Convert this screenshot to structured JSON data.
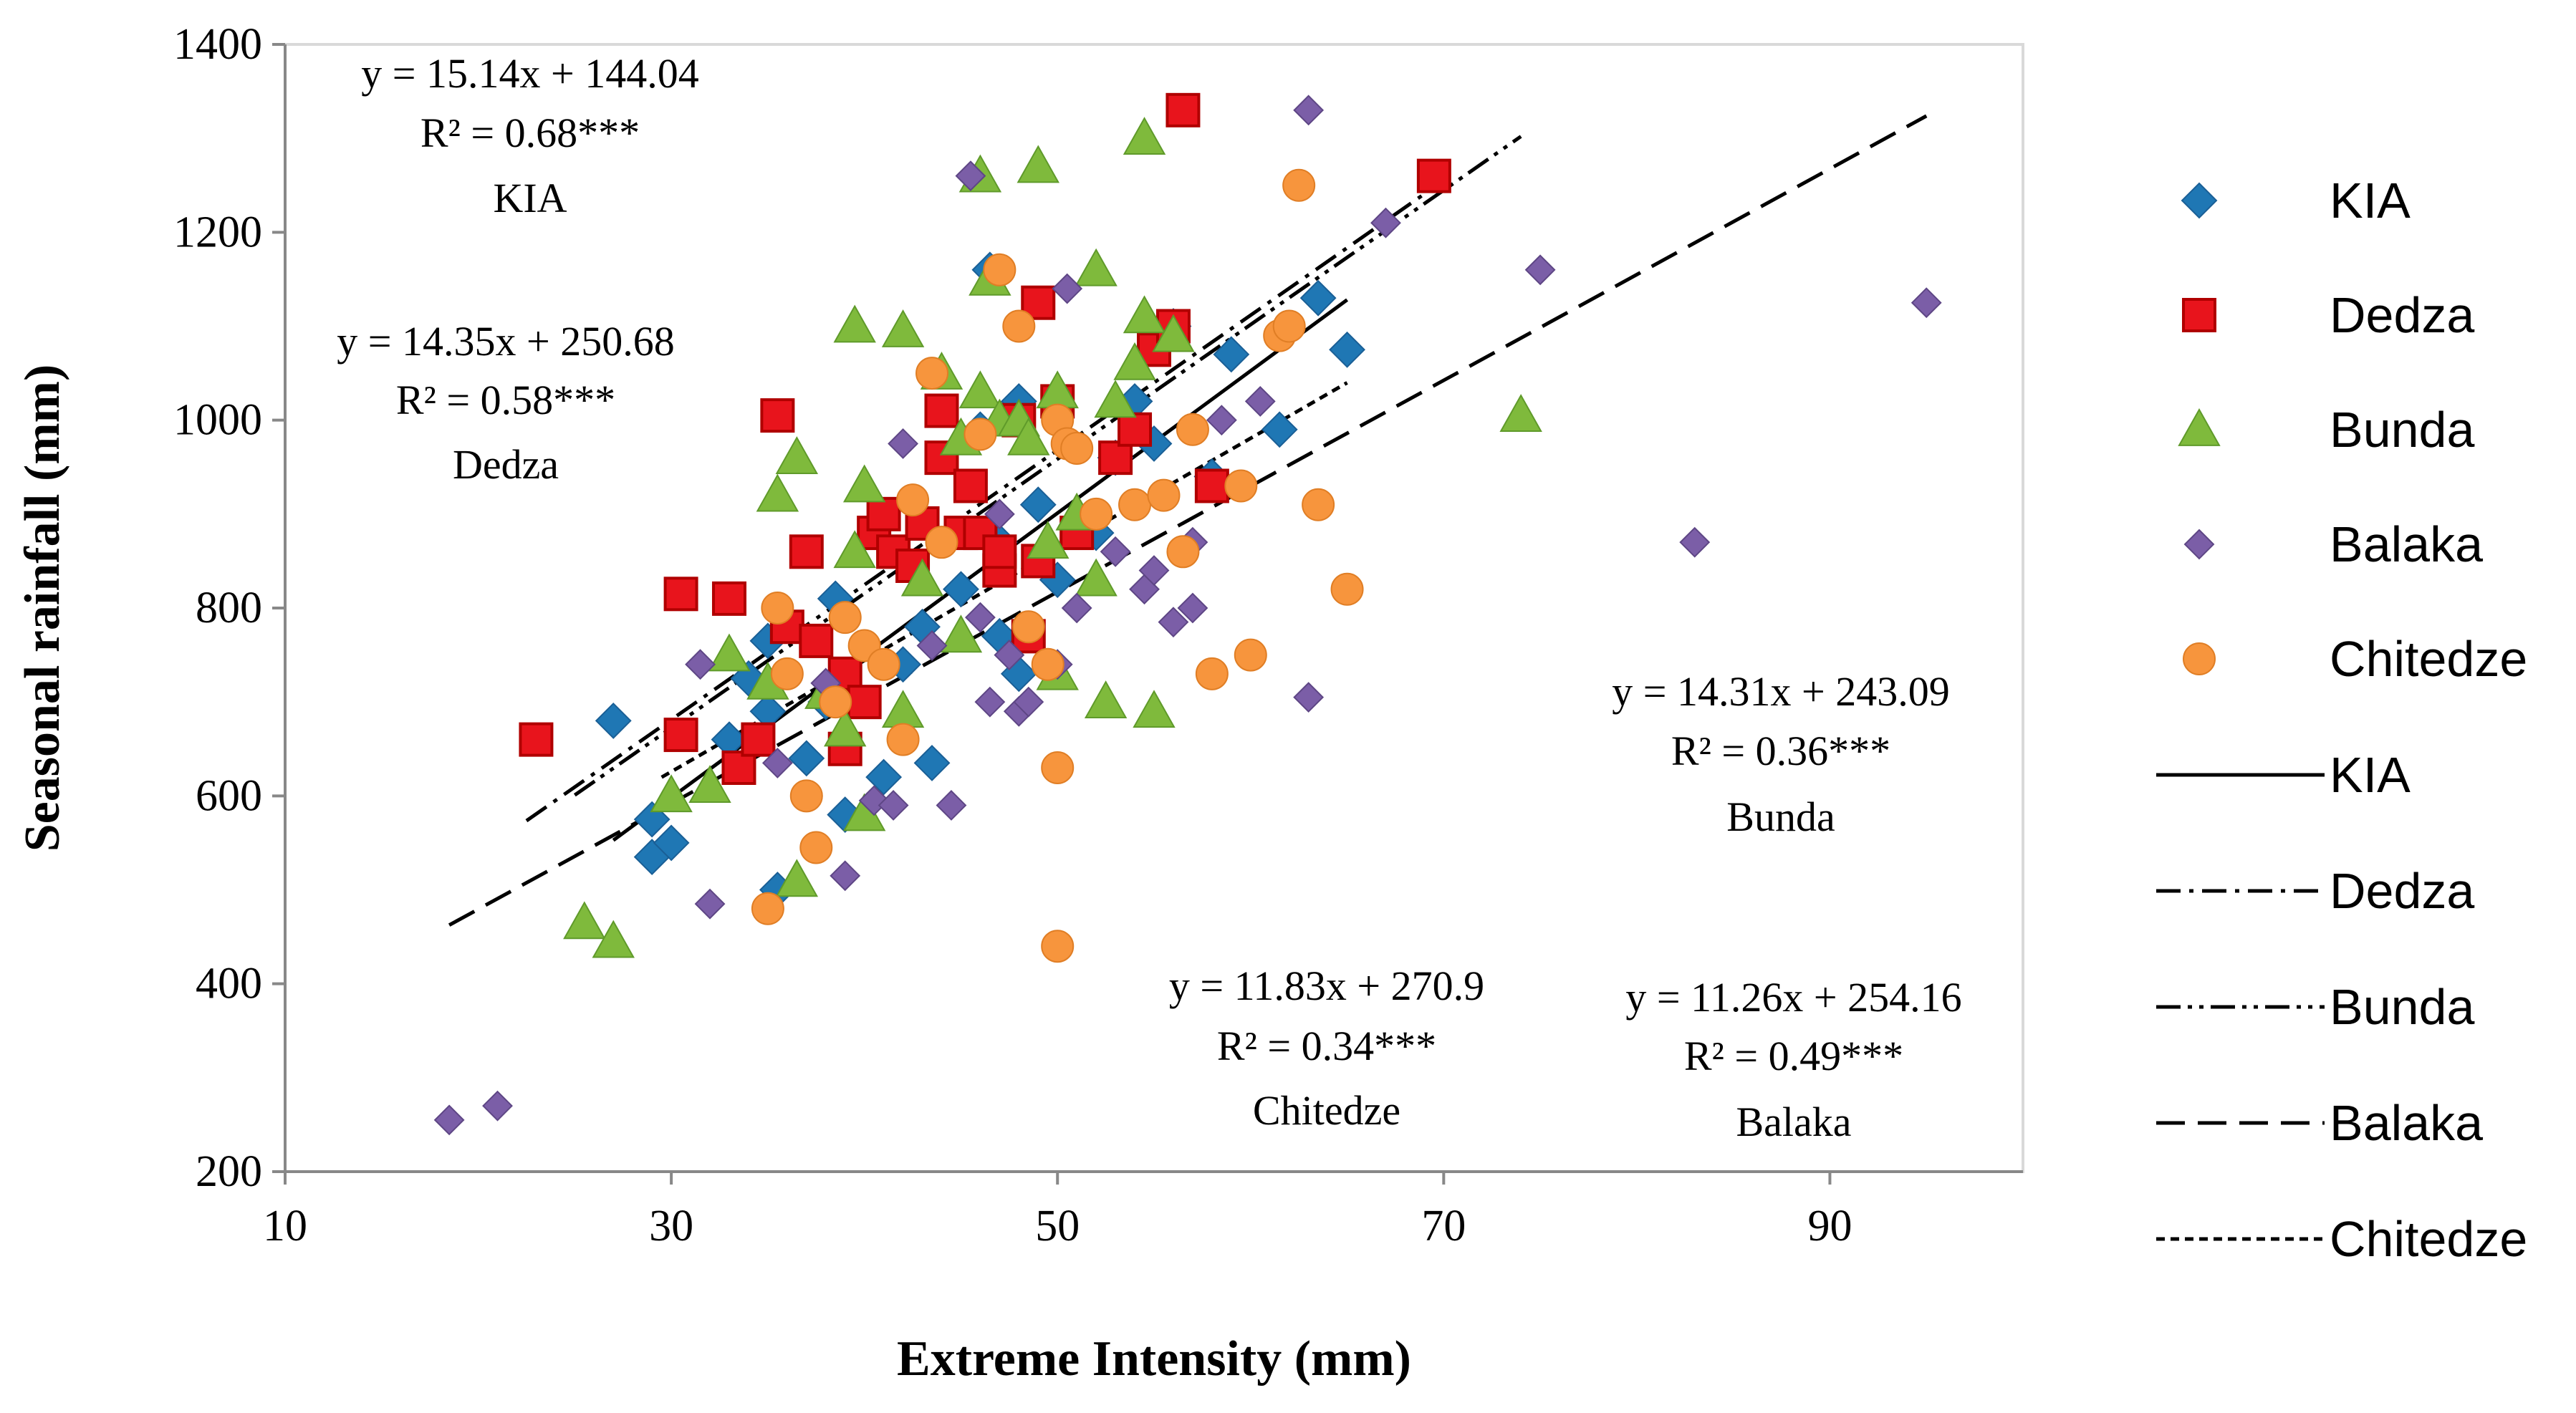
{
  "chart_data": {
    "type": "scatter",
    "title": "",
    "xlabel": "Extreme Intensity (mm)",
    "ylabel": "Seasonal rainfall (mm)",
    "xlim": [
      10,
      100
    ],
    "ylim": [
      200,
      1400
    ],
    "x_ticks": [
      "10",
      "30",
      "50",
      "70",
      "90"
    ],
    "y_ticks": [
      "200",
      "400",
      "600",
      "800",
      "1000",
      "1200",
      "1400"
    ],
    "grid": false,
    "legend_position": "right",
    "series": [
      {
        "name": "KIA",
        "marker": "diamond",
        "color": "#1f77b4",
        "points": [
          [
            27,
            680
          ],
          [
            29,
            575
          ],
          [
            29,
            535
          ],
          [
            30,
            550
          ],
          [
            33,
            660
          ],
          [
            34,
            725
          ],
          [
            35,
            765
          ],
          [
            35,
            690
          ],
          [
            35.5,
            500
          ],
          [
            37,
            640
          ],
          [
            38,
            700
          ],
          [
            38.5,
            810
          ],
          [
            39,
            580
          ],
          [
            41,
            620
          ],
          [
            42,
            740
          ],
          [
            43,
            780
          ],
          [
            43.5,
            635
          ],
          [
            45,
            820
          ],
          [
            46,
            990
          ],
          [
            46.5,
            1160
          ],
          [
            47,
            770
          ],
          [
            47,
            870
          ],
          [
            48,
            1020
          ],
          [
            48,
            730
          ],
          [
            49,
            910
          ],
          [
            50,
            830
          ],
          [
            52,
            880
          ],
          [
            53,
            960
          ],
          [
            54,
            1020
          ],
          [
            55,
            975
          ],
          [
            56,
            1100
          ],
          [
            58,
            940
          ],
          [
            59,
            1070
          ],
          [
            61.5,
            990
          ],
          [
            63.5,
            1130
          ],
          [
            65,
            1075
          ]
        ]
      },
      {
        "name": "Dedza",
        "marker": "square",
        "color": "#e8141c",
        "points": [
          [
            23,
            660
          ],
          [
            30.5,
            665
          ],
          [
            30.5,
            815
          ],
          [
            33,
            810
          ],
          [
            33.5,
            630
          ],
          [
            34.5,
            660
          ],
          [
            35.5,
            1005
          ],
          [
            36,
            780
          ],
          [
            37,
            860
          ],
          [
            37.5,
            765
          ],
          [
            39,
            730
          ],
          [
            39,
            650
          ],
          [
            40,
            700
          ],
          [
            40.5,
            880
          ],
          [
            41,
            900
          ],
          [
            41.5,
            860
          ],
          [
            42.5,
            845
          ],
          [
            43,
            890
          ],
          [
            44,
            1010
          ],
          [
            44,
            960
          ],
          [
            45,
            880
          ],
          [
            45.5,
            930
          ],
          [
            46,
            880
          ],
          [
            47,
            840
          ],
          [
            47,
            860
          ],
          [
            48,
            1000
          ],
          [
            48.5,
            770
          ],
          [
            49,
            1125
          ],
          [
            49,
            850
          ],
          [
            50,
            1020
          ],
          [
            51,
            880
          ],
          [
            53,
            960
          ],
          [
            54,
            990
          ],
          [
            55,
            1075
          ],
          [
            56,
            1100
          ],
          [
            56.5,
            1330
          ],
          [
            58,
            930
          ],
          [
            69.5,
            1260
          ]
        ]
      },
      {
        "name": "Bunda",
        "marker": "triangle",
        "color": "#7fba3c",
        "points": [
          [
            25.5,
            465
          ],
          [
            27,
            445
          ],
          [
            30,
            600
          ],
          [
            32,
            610
          ],
          [
            33,
            750
          ],
          [
            35,
            720
          ],
          [
            35.5,
            920
          ],
          [
            36.5,
            960
          ],
          [
            36.5,
            510
          ],
          [
            38,
            710
          ],
          [
            39,
            670
          ],
          [
            39.5,
            1100
          ],
          [
            39.5,
            860
          ],
          [
            40,
            930
          ],
          [
            40,
            580
          ],
          [
            42,
            1095
          ],
          [
            42,
            690
          ],
          [
            43,
            830
          ],
          [
            44,
            1050
          ],
          [
            45,
            980
          ],
          [
            45,
            770
          ],
          [
            46,
            1260
          ],
          [
            46,
            1030
          ],
          [
            46.5,
            1150
          ],
          [
            47,
            1000
          ],
          [
            48,
            1000
          ],
          [
            48.5,
            980
          ],
          [
            49,
            1270
          ],
          [
            49.5,
            870
          ],
          [
            50,
            1030
          ],
          [
            50,
            730
          ],
          [
            51,
            900
          ],
          [
            52,
            1160
          ],
          [
            52,
            830
          ],
          [
            52.5,
            700
          ],
          [
            53,
            1020
          ],
          [
            54,
            1060
          ],
          [
            54.5,
            1110
          ],
          [
            54.5,
            1300
          ],
          [
            55,
            690
          ],
          [
            56,
            1090
          ],
          [
            74,
            1005
          ]
        ]
      },
      {
        "name": "Balaka",
        "marker": "diamond",
        "color": "#7b5ea7",
        "points": [
          [
            18.5,
            255
          ],
          [
            21,
            270
          ],
          [
            31.5,
            740
          ],
          [
            32,
            485
          ],
          [
            35.5,
            635
          ],
          [
            37,
            600
          ],
          [
            38,
            720
          ],
          [
            39,
            515
          ],
          [
            40.5,
            595
          ],
          [
            41.5,
            590
          ],
          [
            42,
            975
          ],
          [
            43.5,
            760
          ],
          [
            44.5,
            590
          ],
          [
            45.5,
            1260
          ],
          [
            46,
            790
          ],
          [
            46.5,
            700
          ],
          [
            47,
            900
          ],
          [
            47.5,
            750
          ],
          [
            48,
            690
          ],
          [
            48.5,
            700
          ],
          [
            50,
            740
          ],
          [
            50.5,
            1140
          ],
          [
            51,
            800
          ],
          [
            52,
            900
          ],
          [
            53,
            860
          ],
          [
            54.5,
            820
          ],
          [
            55,
            840
          ],
          [
            56,
            785
          ],
          [
            57,
            870
          ],
          [
            57,
            800
          ],
          [
            58.5,
            1000
          ],
          [
            60.5,
            1020
          ],
          [
            63,
            1330
          ],
          [
            63,
            705
          ],
          [
            67,
            1210
          ],
          [
            75,
            1160
          ],
          [
            83,
            870
          ],
          [
            95,
            1125
          ]
        ]
      },
      {
        "name": "Chitedze",
        "marker": "circle",
        "color": "#f7953d",
        "points": [
          [
            35,
            480
          ],
          [
            35.5,
            800
          ],
          [
            36,
            730
          ],
          [
            37,
            600
          ],
          [
            37.5,
            545
          ],
          [
            38.5,
            700
          ],
          [
            39,
            790
          ],
          [
            40,
            760
          ],
          [
            41,
            740
          ],
          [
            42,
            660
          ],
          [
            42.5,
            915
          ],
          [
            43.5,
            1050
          ],
          [
            44,
            870
          ],
          [
            46,
            985
          ],
          [
            47,
            1160
          ],
          [
            48,
            1100
          ],
          [
            48.5,
            780
          ],
          [
            49.5,
            740
          ],
          [
            50,
            1000
          ],
          [
            50,
            440
          ],
          [
            50.5,
            975
          ],
          [
            51,
            970
          ],
          [
            52,
            900
          ],
          [
            54,
            910
          ],
          [
            55.5,
            920
          ],
          [
            56.5,
            860
          ],
          [
            57,
            990
          ],
          [
            58,
            730
          ],
          [
            59.5,
            930
          ],
          [
            60,
            750
          ],
          [
            61.5,
            1090
          ],
          [
            62,
            1100
          ],
          [
            62.5,
            1250
          ],
          [
            63.5,
            910
          ],
          [
            65,
            820
          ],
          [
            50,
            630
          ]
        ]
      }
    ],
    "trendlines": [
      {
        "name": "KIA",
        "style": "solid",
        "slope": 15.14,
        "intercept": 144.04,
        "x_range": [
          27,
          65
        ],
        "equation": "y = 15.14x + 144.04",
        "r2": "R² = 0.68***"
      },
      {
        "name": "Dedza",
        "style": "dash-dot",
        "slope": 14.35,
        "intercept": 250.68,
        "x_range": [
          22.5,
          69.5
        ],
        "equation": "y = 14.35x + 250.68",
        "r2": "R² = 0.58***"
      },
      {
        "name": "Bunda",
        "style": "dash-dot-dot",
        "slope": 14.31,
        "intercept": 243.09,
        "x_range": [
          25,
          74
        ],
        "equation": "y = 14.31x + 243.09",
        "r2": "R² = 0.36***"
      },
      {
        "name": "Balaka",
        "style": "long-dash",
        "slope": 11.26,
        "intercept": 254.16,
        "x_range": [
          18.5,
          95
        ],
        "equation": "y = 11.26x + 254.16",
        "r2": "R² = 0.49***"
      },
      {
        "name": "Chitedze",
        "style": "short-dash",
        "slope": 11.83,
        "intercept": 270.9,
        "x_range": [
          29.5,
          65
        ],
        "equation": "y = 11.83x + 270.9",
        "r2": "R² = 0.34***"
      }
    ]
  }
}
